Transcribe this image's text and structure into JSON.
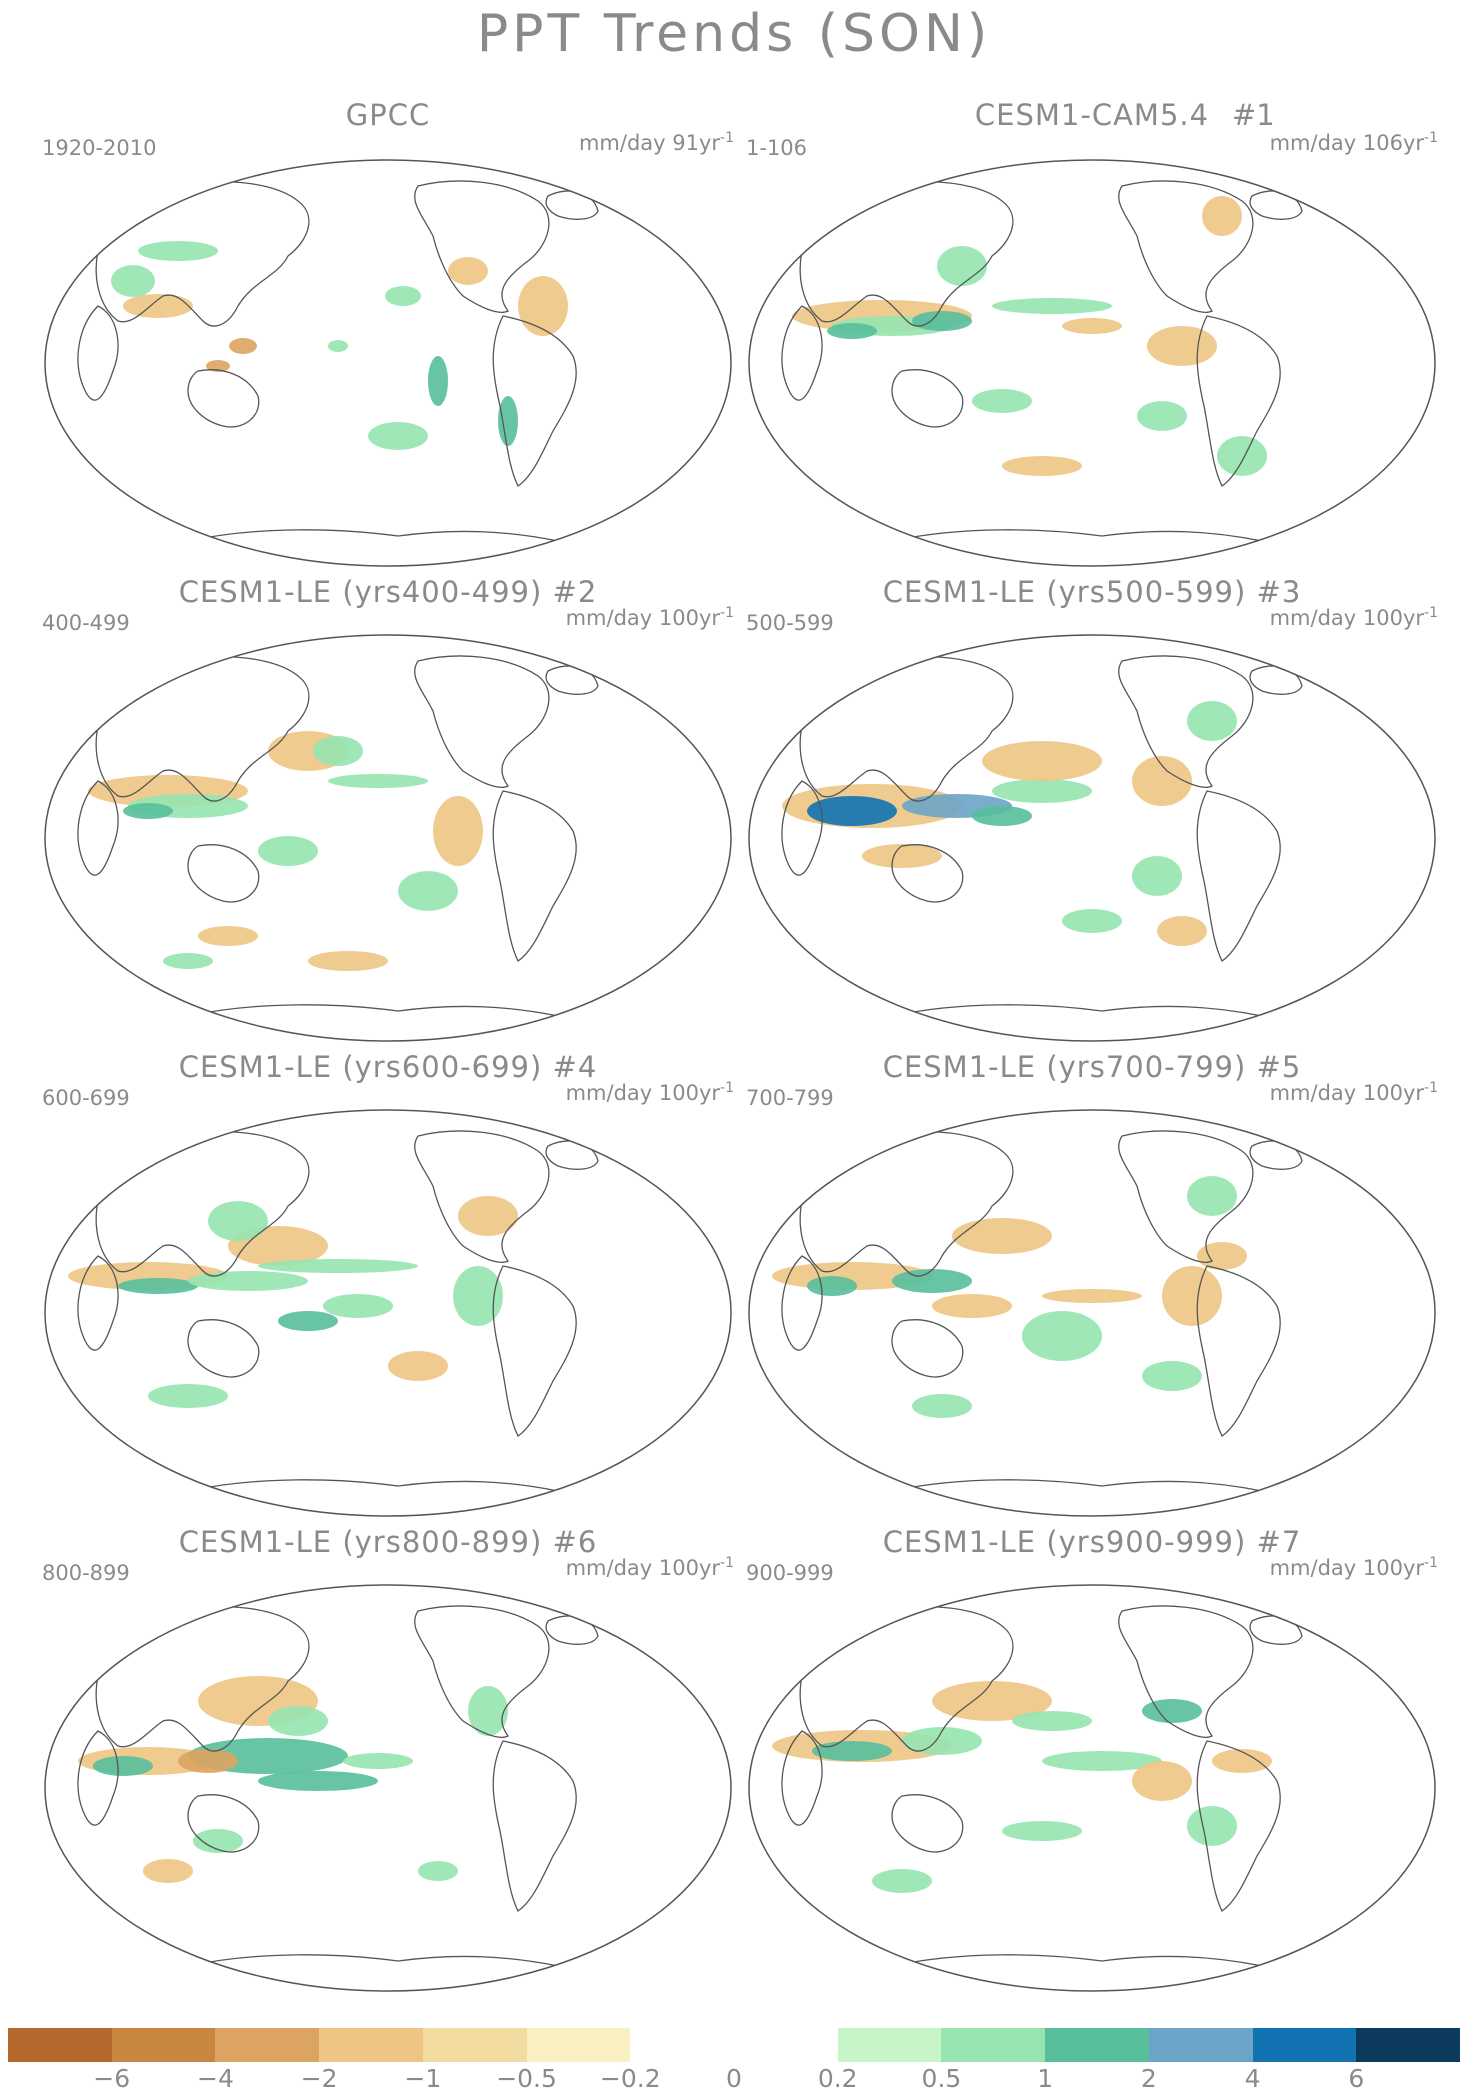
{
  "title": "PPT Trends (SON)",
  "panels": [
    {
      "title": "GPCC",
      "number": "",
      "period": "1920-2010",
      "units_prefix": "mm/day 91yr",
      "units_exp": "-1"
    },
    {
      "title": "CESM1-CAM5.4",
      "number": "#1",
      "period": "1-106",
      "units_prefix": "mm/day 106yr",
      "units_exp": "-1"
    },
    {
      "title": "CESM1-LE (yrs400-499) #2",
      "number": "",
      "period": "400-499",
      "units_prefix": "mm/day 100yr",
      "units_exp": "-1"
    },
    {
      "title": "CESM1-LE (yrs500-599) #3",
      "number": "",
      "period": "500-599",
      "units_prefix": "mm/day 100yr",
      "units_exp": "-1"
    },
    {
      "title": "CESM1-LE (yrs600-699) #4",
      "number": "",
      "period": "600-699",
      "units_prefix": "mm/day 100yr",
      "units_exp": "-1"
    },
    {
      "title": "CESM1-LE (yrs700-799) #5",
      "number": "",
      "period": "700-799",
      "units_prefix": "mm/day 100yr",
      "units_exp": "-1"
    },
    {
      "title": "CESM1-LE (yrs800-899) #6",
      "number": "",
      "period": "800-899",
      "units_prefix": "mm/day 100yr",
      "units_exp": "-1"
    },
    {
      "title": "CESM1-LE (yrs900-999) #7",
      "number": "",
      "period": "900-999",
      "units_prefix": "mm/day 100yr",
      "units_exp": "-1"
    }
  ],
  "colorbar": {
    "colors": [
      "#b5692d",
      "#c98641",
      "#dba461",
      "#eec583",
      "#f3dca2",
      "#faf0c2",
      "#ffffff",
      "#ffffff",
      "#c8f5c8",
      "#96e4b0",
      "#57bf9c",
      "#6ba4c6",
      "#1173b2",
      "#0c3a5c"
    ],
    "labels": [
      "−6",
      "−4",
      "−2",
      "−1",
      "−0.5",
      "−0.2",
      "0",
      "0.2",
      "0.5",
      "1",
      "2",
      "4",
      "6"
    ]
  }
}
